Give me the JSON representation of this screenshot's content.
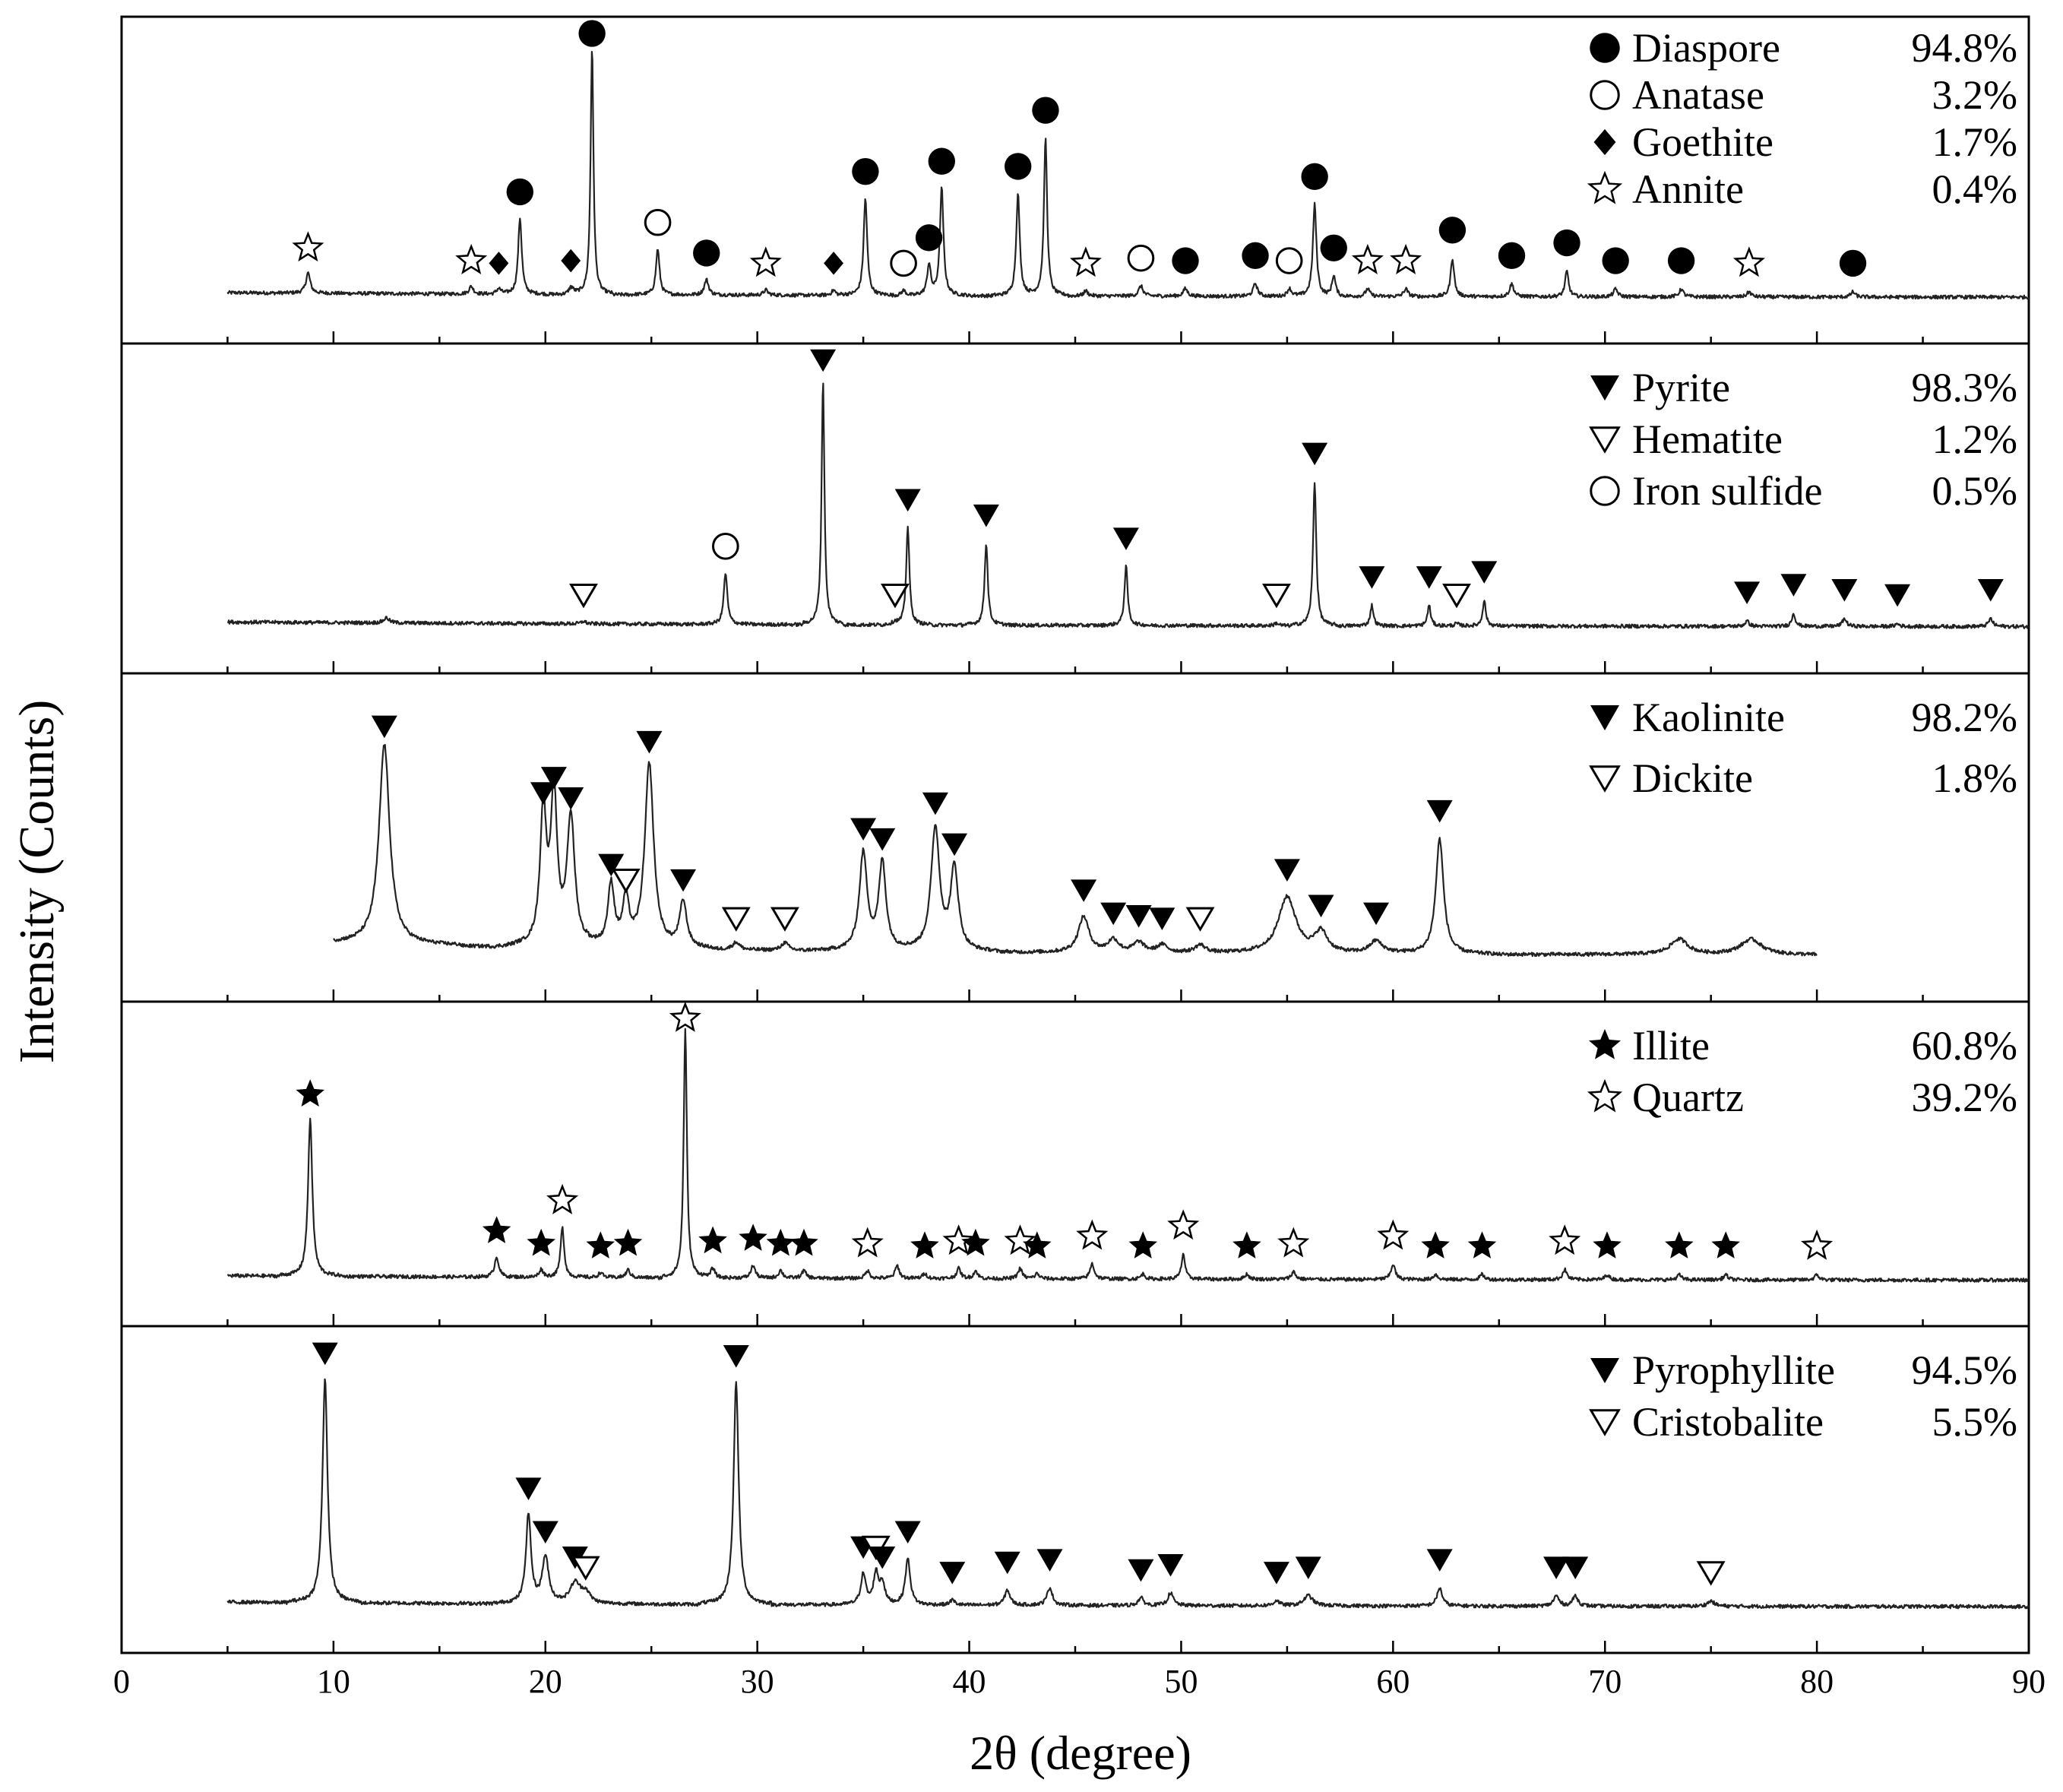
{
  "chart_data": {
    "type": "line",
    "title": "",
    "xlabel": "2θ (degree)",
    "ylabel": "Intensity (Counts)",
    "xlim": [
      0,
      90
    ],
    "x_ticks": [
      0,
      10,
      20,
      30,
      40,
      50,
      60,
      70,
      80,
      90
    ],
    "panels": [
      {
        "name": "diaspore-sample",
        "x_range": [
          5,
          90
        ],
        "legend": [
          {
            "phase": "Diaspore",
            "percent": "94.8%",
            "marker": "filled-circle"
          },
          {
            "phase": "Anatase",
            "percent": "3.2%",
            "marker": "open-circle"
          },
          {
            "phase": "Goethite",
            "percent": "1.7%",
            "marker": "filled-diamond"
          },
          {
            "phase": "Annite",
            "percent": "0.4%",
            "marker": "open-star"
          }
        ],
        "peaks": [
          {
            "x": 8.8,
            "h": 0.08,
            "w": 0.12,
            "m": "open-star"
          },
          {
            "x": 16.5,
            "h": 0.03,
            "w": 0.12,
            "m": "open-star"
          },
          {
            "x": 17.8,
            "h": 0.02,
            "w": 0.12,
            "m": "filled-diamond"
          },
          {
            "x": 18.8,
            "h": 0.3,
            "w": 0.1,
            "m": "filled-circle"
          },
          {
            "x": 21.2,
            "h": 0.03,
            "w": 0.12,
            "m": "filled-diamond"
          },
          {
            "x": 22.2,
            "h": 0.97,
            "w": 0.08,
            "m": "filled-circle"
          },
          {
            "x": 25.3,
            "h": 0.18,
            "w": 0.1,
            "m": "open-circle"
          },
          {
            "x": 27.6,
            "h": 0.06,
            "w": 0.12,
            "m": "filled-circle"
          },
          {
            "x": 30.4,
            "h": 0.02,
            "w": 0.12,
            "m": "open-star"
          },
          {
            "x": 33.6,
            "h": 0.02,
            "w": 0.12,
            "m": "filled-diamond"
          },
          {
            "x": 35.1,
            "h": 0.38,
            "w": 0.1,
            "m": "filled-circle"
          },
          {
            "x": 36.9,
            "h": 0.02,
            "w": 0.12,
            "m": "open-circle"
          },
          {
            "x": 38.1,
            "h": 0.12,
            "w": 0.1,
            "m": "filled-circle"
          },
          {
            "x": 38.7,
            "h": 0.42,
            "w": 0.1,
            "m": "filled-circle"
          },
          {
            "x": 42.3,
            "h": 0.4,
            "w": 0.1,
            "m": "filled-circle"
          },
          {
            "x": 43.6,
            "h": 0.62,
            "w": 0.09,
            "m": "filled-circle"
          },
          {
            "x": 45.5,
            "h": 0.02,
            "w": 0.12,
            "m": "open-star"
          },
          {
            "x": 48.1,
            "h": 0.04,
            "w": 0.12,
            "m": "open-circle"
          },
          {
            "x": 50.2,
            "h": 0.03,
            "w": 0.12,
            "m": "filled-circle"
          },
          {
            "x": 53.5,
            "h": 0.05,
            "w": 0.12,
            "m": "filled-circle"
          },
          {
            "x": 55.1,
            "h": 0.03,
            "w": 0.12,
            "m": "open-circle"
          },
          {
            "x": 56.3,
            "h": 0.36,
            "w": 0.1,
            "m": "filled-circle"
          },
          {
            "x": 57.2,
            "h": 0.08,
            "w": 0.1,
            "m": "filled-circle"
          },
          {
            "x": 58.8,
            "h": 0.03,
            "w": 0.12,
            "m": "open-star"
          },
          {
            "x": 60.6,
            "h": 0.03,
            "w": 0.12,
            "m": "open-star"
          },
          {
            "x": 62.8,
            "h": 0.15,
            "w": 0.1,
            "m": "filled-circle"
          },
          {
            "x": 65.6,
            "h": 0.05,
            "w": 0.12,
            "m": "filled-circle"
          },
          {
            "x": 68.2,
            "h": 0.1,
            "w": 0.1,
            "m": "filled-circle"
          },
          {
            "x": 70.5,
            "h": 0.03,
            "w": 0.12,
            "m": "filled-circle"
          },
          {
            "x": 73.6,
            "h": 0.03,
            "w": 0.12,
            "m": "filled-circle"
          },
          {
            "x": 76.8,
            "h": 0.02,
            "w": 0.12,
            "m": "open-star"
          },
          {
            "x": 81.7,
            "h": 0.02,
            "w": 0.12,
            "m": "filled-circle"
          }
        ]
      },
      {
        "name": "pyrite-sample",
        "x_range": [
          5,
          90
        ],
        "legend": [
          {
            "phase": "Pyrite",
            "percent": "98.3%",
            "marker": "filled-down-triangle"
          },
          {
            "phase": "Hematite",
            "percent": "1.2%",
            "marker": "open-down-triangle"
          },
          {
            "phase": "Iron sulfide",
            "percent": "0.5%",
            "marker": "open-circle"
          }
        ],
        "peaks": [
          {
            "x": 12.5,
            "h": 0.02,
            "w": 0.15,
            "m": ""
          },
          {
            "x": 21.8,
            "h": 0.01,
            "w": 0.12,
            "m": "open-down-triangle"
          },
          {
            "x": 28.5,
            "h": 0.2,
            "w": 0.1,
            "m": "open-circle"
          },
          {
            "x": 33.1,
            "h": 0.95,
            "w": 0.08,
            "m": "filled-down-triangle"
          },
          {
            "x": 36.5,
            "h": 0.01,
            "w": 0.12,
            "m": "open-down-triangle"
          },
          {
            "x": 37.1,
            "h": 0.38,
            "w": 0.09,
            "m": "filled-down-triangle"
          },
          {
            "x": 40.8,
            "h": 0.32,
            "w": 0.09,
            "m": "filled-down-triangle"
          },
          {
            "x": 47.4,
            "h": 0.23,
            "w": 0.09,
            "m": "filled-down-triangle"
          },
          {
            "x": 54.5,
            "h": 0.01,
            "w": 0.12,
            "m": "open-down-triangle"
          },
          {
            "x": 56.3,
            "h": 0.56,
            "w": 0.09,
            "m": "filled-down-triangle"
          },
          {
            "x": 59.0,
            "h": 0.08,
            "w": 0.09,
            "m": "filled-down-triangle"
          },
          {
            "x": 61.7,
            "h": 0.08,
            "w": 0.09,
            "m": "filled-down-triangle"
          },
          {
            "x": 63.0,
            "h": 0.01,
            "w": 0.12,
            "m": "open-down-triangle"
          },
          {
            "x": 64.3,
            "h": 0.1,
            "w": 0.09,
            "m": "filled-down-triangle"
          },
          {
            "x": 76.7,
            "h": 0.02,
            "w": 0.12,
            "m": "filled-down-triangle"
          },
          {
            "x": 78.9,
            "h": 0.05,
            "w": 0.1,
            "m": "filled-down-triangle"
          },
          {
            "x": 81.3,
            "h": 0.03,
            "w": 0.12,
            "m": "filled-down-triangle"
          },
          {
            "x": 83.8,
            "h": 0.01,
            "w": 0.12,
            "m": "filled-down-triangle"
          },
          {
            "x": 88.2,
            "h": 0.03,
            "w": 0.12,
            "m": "filled-down-triangle"
          }
        ]
      },
      {
        "name": "kaolinite-sample",
        "x_range": [
          10,
          80
        ],
        "legend": [
          {
            "phase": "Kaolinite",
            "percent": "98.2%",
            "marker": "filled-down-triangle"
          },
          {
            "phase": "Dickite",
            "percent": "1.8%",
            "marker": "open-down-triangle"
          }
        ],
        "peaks": [
          {
            "x": 12.4,
            "h": 0.78,
            "w": 0.3,
            "m": "filled-down-triangle"
          },
          {
            "x": 19.9,
            "h": 0.52,
            "w": 0.18,
            "m": "filled-down-triangle"
          },
          {
            "x": 20.4,
            "h": 0.58,
            "w": 0.18,
            "m": "filled-down-triangle"
          },
          {
            "x": 21.2,
            "h": 0.5,
            "w": 0.22,
            "m": "filled-down-triangle"
          },
          {
            "x": 23.1,
            "h": 0.24,
            "w": 0.18,
            "m": "filled-down-triangle"
          },
          {
            "x": 23.8,
            "h": 0.18,
            "w": 0.18,
            "m": "open-down-triangle"
          },
          {
            "x": 24.9,
            "h": 0.72,
            "w": 0.25,
            "m": "filled-down-triangle"
          },
          {
            "x": 26.5,
            "h": 0.18,
            "w": 0.2,
            "m": "filled-down-triangle"
          },
          {
            "x": 29.0,
            "h": 0.03,
            "w": 0.2,
            "m": "open-down-triangle"
          },
          {
            "x": 31.3,
            "h": 0.03,
            "w": 0.2,
            "m": "open-down-triangle"
          },
          {
            "x": 35.0,
            "h": 0.38,
            "w": 0.22,
            "m": "filled-down-triangle"
          },
          {
            "x": 35.9,
            "h": 0.34,
            "w": 0.2,
            "m": "filled-down-triangle"
          },
          {
            "x": 38.4,
            "h": 0.48,
            "w": 0.24,
            "m": "filled-down-triangle"
          },
          {
            "x": 39.3,
            "h": 0.32,
            "w": 0.22,
            "m": "filled-down-triangle"
          },
          {
            "x": 45.4,
            "h": 0.14,
            "w": 0.3,
            "m": "filled-down-triangle"
          },
          {
            "x": 46.8,
            "h": 0.05,
            "w": 0.3,
            "m": "filled-down-triangle"
          },
          {
            "x": 48.0,
            "h": 0.04,
            "w": 0.3,
            "m": "filled-down-triangle"
          },
          {
            "x": 49.1,
            "h": 0.03,
            "w": 0.3,
            "m": "filled-down-triangle"
          },
          {
            "x": 50.9,
            "h": 0.03,
            "w": 0.3,
            "m": "open-down-triangle"
          },
          {
            "x": 55.0,
            "h": 0.22,
            "w": 0.5,
            "m": "filled-down-triangle"
          },
          {
            "x": 56.6,
            "h": 0.08,
            "w": 0.35,
            "m": "filled-down-triangle"
          },
          {
            "x": 59.2,
            "h": 0.05,
            "w": 0.35,
            "m": "filled-down-triangle"
          },
          {
            "x": 62.2,
            "h": 0.45,
            "w": 0.22,
            "m": "filled-down-triangle"
          },
          {
            "x": 73.5,
            "h": 0.06,
            "w": 0.5,
            "m": ""
          },
          {
            "x": 76.9,
            "h": 0.06,
            "w": 0.6,
            "m": ""
          }
        ]
      },
      {
        "name": "illite-sample",
        "x_range": [
          5,
          90
        ],
        "legend": [
          {
            "phase": "Illite",
            "percent": "60.8%",
            "marker": "filled-star"
          },
          {
            "phase": "Quartz",
            "percent": "39.2%",
            "marker": "open-star"
          }
        ],
        "peaks": [
          {
            "x": 8.9,
            "h": 0.62,
            "w": 0.12,
            "m": "filled-star"
          },
          {
            "x": 17.7,
            "h": 0.08,
            "w": 0.12,
            "m": "filled-star"
          },
          {
            "x": 19.8,
            "h": 0.03,
            "w": 0.12,
            "m": "filled-star"
          },
          {
            "x": 20.8,
            "h": 0.2,
            "w": 0.1,
            "m": "open-star"
          },
          {
            "x": 22.6,
            "h": 0.02,
            "w": 0.12,
            "m": "filled-star"
          },
          {
            "x": 23.9,
            "h": 0.03,
            "w": 0.12,
            "m": "filled-star"
          },
          {
            "x": 26.6,
            "h": 0.98,
            "w": 0.09,
            "m": "open-star"
          },
          {
            "x": 27.9,
            "h": 0.04,
            "w": 0.12,
            "m": "filled-star"
          },
          {
            "x": 29.8,
            "h": 0.05,
            "w": 0.12,
            "m": "filled-star"
          },
          {
            "x": 31.1,
            "h": 0.03,
            "w": 0.12,
            "m": "filled-star"
          },
          {
            "x": 32.2,
            "h": 0.03,
            "w": 0.12,
            "m": "filled-star"
          },
          {
            "x": 35.2,
            "h": 0.03,
            "w": 0.12,
            "m": "open-star"
          },
          {
            "x": 36.6,
            "h": 0.05,
            "w": 0.12,
            "m": ""
          },
          {
            "x": 37.9,
            "h": 0.02,
            "w": 0.12,
            "m": "filled-star"
          },
          {
            "x": 39.5,
            "h": 0.04,
            "w": 0.12,
            "m": "open-star"
          },
          {
            "x": 40.3,
            "h": 0.03,
            "w": 0.12,
            "m": "filled-star"
          },
          {
            "x": 42.4,
            "h": 0.04,
            "w": 0.12,
            "m": "open-star"
          },
          {
            "x": 43.2,
            "h": 0.02,
            "w": 0.12,
            "m": "filled-star"
          },
          {
            "x": 45.8,
            "h": 0.06,
            "w": 0.12,
            "m": "open-star"
          },
          {
            "x": 48.2,
            "h": 0.02,
            "w": 0.12,
            "m": "filled-star"
          },
          {
            "x": 50.1,
            "h": 0.1,
            "w": 0.1,
            "m": "open-star"
          },
          {
            "x": 53.1,
            "h": 0.02,
            "w": 0.12,
            "m": "filled-star"
          },
          {
            "x": 55.3,
            "h": 0.03,
            "w": 0.12,
            "m": "open-star"
          },
          {
            "x": 60.0,
            "h": 0.06,
            "w": 0.12,
            "m": "open-star"
          },
          {
            "x": 62.0,
            "h": 0.02,
            "w": 0.12,
            "m": "filled-star"
          },
          {
            "x": 64.2,
            "h": 0.02,
            "w": 0.12,
            "m": "filled-star"
          },
          {
            "x": 68.1,
            "h": 0.04,
            "w": 0.12,
            "m": "open-star"
          },
          {
            "x": 70.1,
            "h": 0.02,
            "w": 0.12,
            "m": "filled-star"
          },
          {
            "x": 73.5,
            "h": 0.02,
            "w": 0.12,
            "m": "filled-star"
          },
          {
            "x": 75.7,
            "h": 0.02,
            "w": 0.12,
            "m": "filled-star"
          },
          {
            "x": 80.0,
            "h": 0.02,
            "w": 0.12,
            "m": "open-star"
          }
        ]
      },
      {
        "name": "pyrophyllite-sample",
        "x_range": [
          5,
          90
        ],
        "legend": [
          {
            "phase": "Pyrophyllite",
            "percent": "94.5%",
            "marker": "filled-down-triangle"
          },
          {
            "phase": "Cristobalite",
            "percent": "5.5%",
            "marker": "open-down-triangle"
          }
        ],
        "peaks": [
          {
            "x": 9.6,
            "h": 0.88,
            "w": 0.14,
            "m": "filled-down-triangle"
          },
          {
            "x": 19.2,
            "h": 0.35,
            "w": 0.14,
            "m": "filled-down-triangle"
          },
          {
            "x": 20.0,
            "h": 0.18,
            "w": 0.18,
            "m": "filled-down-triangle"
          },
          {
            "x": 21.4,
            "h": 0.08,
            "w": 0.3,
            "m": "filled-down-triangle"
          },
          {
            "x": 21.9,
            "h": 0.04,
            "w": 0.25,
            "m": "open-down-triangle"
          },
          {
            "x": 29.0,
            "h": 0.87,
            "w": 0.14,
            "m": "filled-down-triangle"
          },
          {
            "x": 35.0,
            "h": 0.12,
            "w": 0.14,
            "m": "filled-down-triangle"
          },
          {
            "x": 35.6,
            "h": 0.12,
            "w": 0.14,
            "m": "open-down-triangle"
          },
          {
            "x": 35.9,
            "h": 0.08,
            "w": 0.14,
            "m": "filled-down-triangle"
          },
          {
            "x": 37.1,
            "h": 0.18,
            "w": 0.14,
            "m": "filled-down-triangle"
          },
          {
            "x": 39.2,
            "h": 0.02,
            "w": 0.15,
            "m": "filled-down-triangle"
          },
          {
            "x": 41.8,
            "h": 0.06,
            "w": 0.15,
            "m": "filled-down-triangle"
          },
          {
            "x": 43.8,
            "h": 0.07,
            "w": 0.15,
            "m": "filled-down-triangle"
          },
          {
            "x": 48.1,
            "h": 0.03,
            "w": 0.15,
            "m": "filled-down-triangle"
          },
          {
            "x": 49.5,
            "h": 0.05,
            "w": 0.15,
            "m": "filled-down-triangle"
          },
          {
            "x": 54.5,
            "h": 0.02,
            "w": 0.15,
            "m": "filled-down-triangle"
          },
          {
            "x": 56.0,
            "h": 0.04,
            "w": 0.25,
            "m": "filled-down-triangle"
          },
          {
            "x": 62.2,
            "h": 0.07,
            "w": 0.15,
            "m": "filled-down-triangle"
          },
          {
            "x": 67.7,
            "h": 0.04,
            "w": 0.15,
            "m": "filled-down-triangle"
          },
          {
            "x": 68.6,
            "h": 0.04,
            "w": 0.15,
            "m": "filled-down-triangle"
          },
          {
            "x": 75.0,
            "h": 0.02,
            "w": 0.2,
            "m": "open-down-triangle"
          }
        ]
      }
    ]
  }
}
